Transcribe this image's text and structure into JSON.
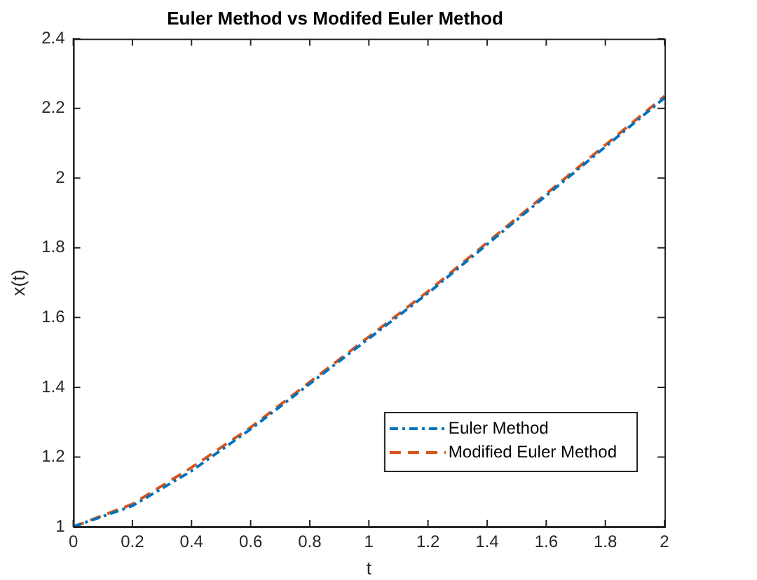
{
  "chart_data": {
    "type": "line",
    "title": "Euler Method vs Modifed Euler Method",
    "xlabel": "t",
    "ylabel": "x(t)",
    "x": [
      0,
      0.2,
      0.4,
      0.6,
      0.8,
      1.0,
      1.2,
      1.4,
      1.6,
      1.8,
      2.0
    ],
    "series": [
      {
        "name": "Euler Method",
        "color": "#0072bd",
        "line_style": "dashdot",
        "values": [
          1,
          1.06,
          1.16,
          1.28,
          1.41,
          1.54,
          1.67,
          1.81,
          1.95,
          2.09,
          2.23
        ]
      },
      {
        "name": "Modified Euler Method",
        "color": "#d95319",
        "line_style": "dashed",
        "values": [
          1,
          1.065,
          1.17,
          1.285,
          1.415,
          1.545,
          1.675,
          1.815,
          1.955,
          2.095,
          2.235
        ]
      }
    ],
    "xlim": [
      0,
      2
    ],
    "xticks": [
      0,
      0.2,
      0.4,
      0.6,
      0.8,
      1,
      1.2,
      1.4,
      1.6,
      1.8,
      2
    ],
    "ylim": [
      1,
      2.4
    ],
    "yticks": [
      1,
      1.2,
      1.4,
      1.6,
      1.8,
      2,
      2.2,
      2.4
    ],
    "grid": false,
    "legend": "bottom right",
    "marker": "none"
  }
}
